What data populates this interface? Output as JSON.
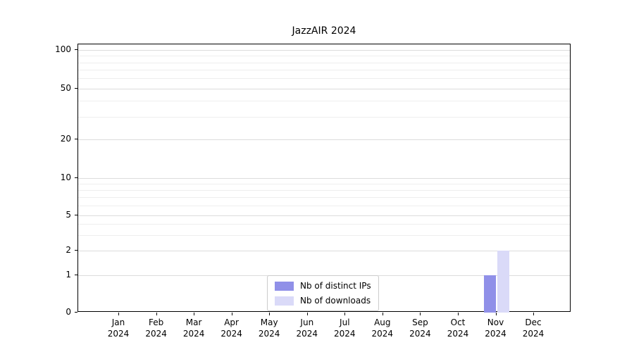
{
  "title": "JazzAIR 2024",
  "colors": {
    "distinct_ips": "#9090e8",
    "downloads": "#dadaf8",
    "grid_major": "#dcdcdc",
    "grid_minor": "#eeeeee",
    "axis": "#000000"
  },
  "legend": {
    "items": [
      {
        "label": "Nb of distinct IPs",
        "color": "#9090e8"
      },
      {
        "label": "Nb of downloads",
        "color": "#dadaf8"
      }
    ]
  },
  "chart_data": {
    "type": "bar",
    "title": "JazzAIR 2024",
    "categories": [
      "Jan 2024",
      "Feb 2024",
      "Mar 2024",
      "Apr 2024",
      "May 2024",
      "Jun 2024",
      "Jul 2024",
      "Aug 2024",
      "Sep 2024",
      "Oct 2024",
      "Nov 2024",
      "Dec 2024"
    ],
    "series": [
      {
        "name": "Nb of distinct IPs",
        "color": "#9090e8",
        "values": [
          0,
          0,
          0,
          0,
          0,
          0,
          0,
          0,
          0,
          0,
          1,
          0
        ]
      },
      {
        "name": "Nb of downloads",
        "color": "#dadaf8",
        "values": [
          0,
          0,
          0,
          0,
          0,
          0,
          0,
          0,
          0,
          0,
          2,
          0
        ]
      }
    ],
    "xlabel": "",
    "ylabel": "",
    "yscale": "symlog",
    "yticks": [
      100,
      50,
      20,
      10,
      5,
      2,
      1,
      0
    ],
    "ylim": [
      0,
      100
    ],
    "grid": true,
    "legend_position": "lower center"
  }
}
